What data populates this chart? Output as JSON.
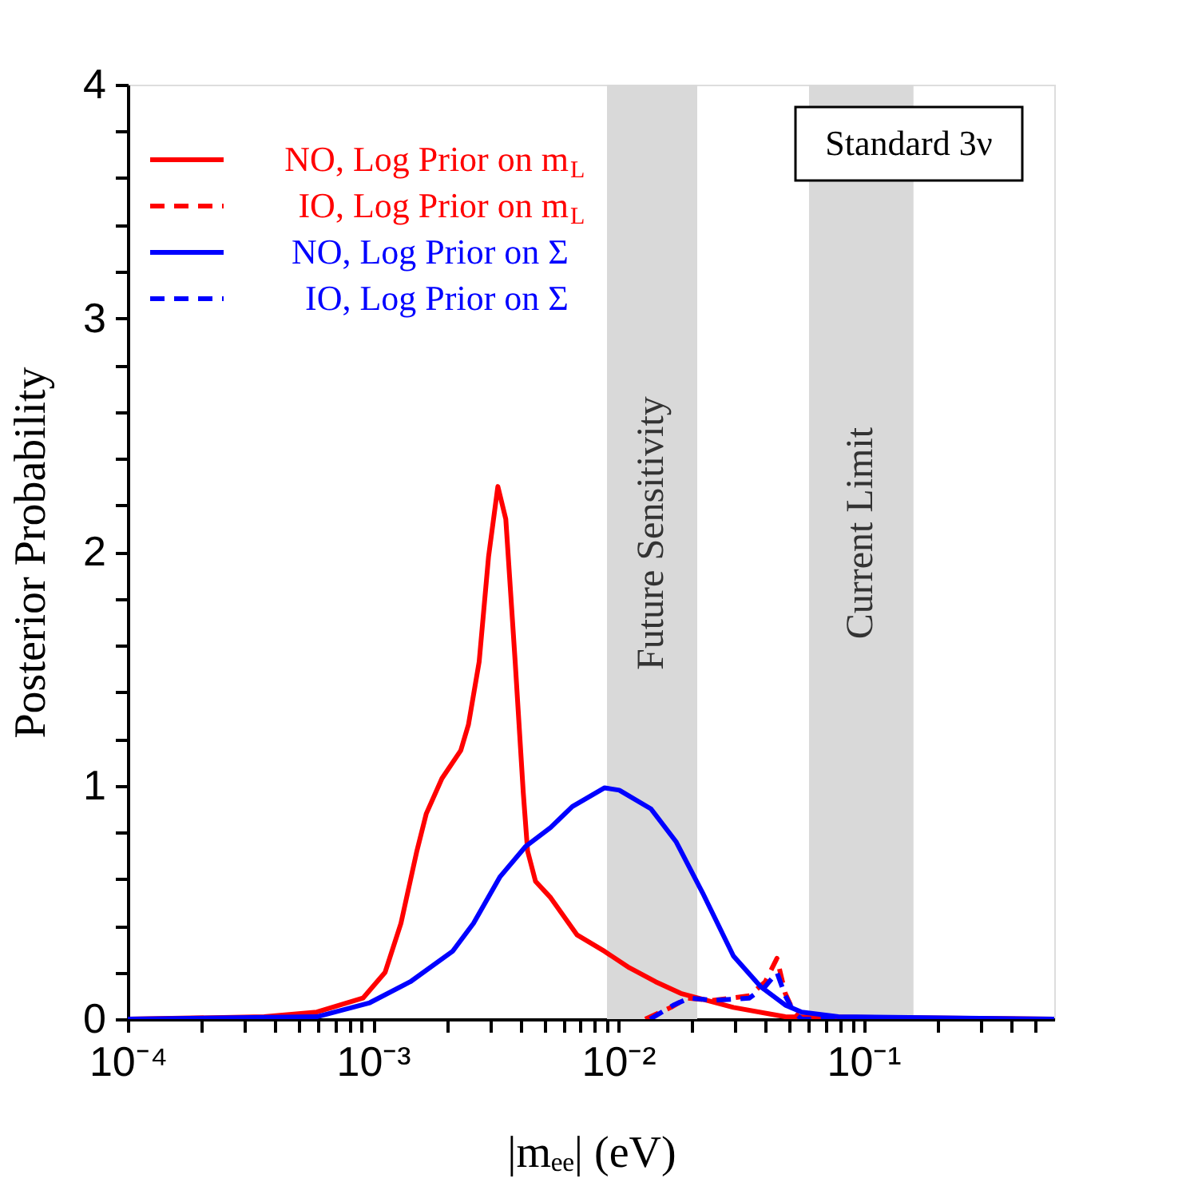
{
  "chart_data": {
    "type": "line",
    "xlabel": "|mₑₑ| (eV)",
    "ylabel": "Posterior Probability",
    "log": "x",
    "grid": false,
    "legend": "top left",
    "marker": "none",
    "xlim": [
      0.0001,
      0.6
    ],
    "ylim": [
      0,
      4
    ],
    "xticks": [
      {
        "value": 0.0001,
        "label": "10⁻⁴"
      },
      {
        "value": 0.0002,
        "label": null
      },
      {
        "value": 0.0003,
        "label": null
      },
      {
        "value": 0.0004,
        "label": null
      },
      {
        "value": 0.0005,
        "label": null
      },
      {
        "value": 0.0006,
        "label": null
      },
      {
        "value": 0.0007,
        "label": null
      },
      {
        "value": 0.0008,
        "label": null
      },
      {
        "value": 0.0009,
        "label": null
      },
      {
        "value": 0.001,
        "label": "10⁻³"
      },
      {
        "value": 0.002,
        "label": null
      },
      {
        "value": 0.003,
        "label": null
      },
      {
        "value": 0.004,
        "label": null
      },
      {
        "value": 0.005,
        "label": null
      },
      {
        "value": 0.006,
        "label": null
      },
      {
        "value": 0.007,
        "label": null
      },
      {
        "value": 0.008,
        "label": null
      },
      {
        "value": 0.009,
        "label": null
      },
      {
        "value": 0.01,
        "label": "10⁻²"
      },
      {
        "value": 0.02,
        "label": null
      },
      {
        "value": 0.03,
        "label": null
      },
      {
        "value": 0.04,
        "label": null
      },
      {
        "value": 0.05,
        "label": null
      },
      {
        "value": 0.06,
        "label": null
      },
      {
        "value": 0.07,
        "label": null
      },
      {
        "value": 0.08,
        "label": null
      },
      {
        "value": 0.09,
        "label": null
      },
      {
        "value": 0.1,
        "label": "10⁻¹"
      },
      {
        "value": 0.2,
        "label": null
      },
      {
        "value": 0.3,
        "label": null
      },
      {
        "value": 0.4,
        "label": null
      },
      {
        "value": 0.5,
        "label": null
      }
    ],
    "yticks": [
      0,
      {
        "value": 0.2,
        "label": null
      },
      {
        "value": 0.4,
        "label": null
      },
      {
        "value": 0.6,
        "label": null
      },
      {
        "value": 0.8,
        "label": null
      },
      1,
      {
        "value": 1.2,
        "label": null
      },
      {
        "value": 1.4,
        "label": null
      },
      {
        "value": 1.6,
        "label": null
      },
      {
        "value": 1.8,
        "label": null
      },
      2,
      {
        "value": 2.2,
        "label": null
      },
      {
        "value": 2.4,
        "label": null
      },
      {
        "value": 2.6,
        "label": null
      },
      {
        "value": 2.8,
        "label": null
      },
      3,
      {
        "value": 3.2,
        "label": null
      },
      {
        "value": 3.4,
        "label": null
      },
      {
        "value": 3.6,
        "label": null
      },
      {
        "value": 3.8,
        "label": null
      },
      4
    ],
    "bands": [
      {
        "axis": "x",
        "from": 0.009,
        "to": 0.021,
        "label": "Future Sensitivity",
        "color": "#d9d9d9"
      },
      {
        "axis": "x",
        "from": 0.06,
        "to": 0.16,
        "label": "Current Limit",
        "color": "#d9d9d9"
      }
    ],
    "annotations": [
      "Standard 3ν"
    ],
    "series": [
      {
        "name": "NO, Log Prior on m$_{L}$",
        "color": "#ff0000",
        "line_style": "solid",
        "x": [
          0.0001,
          0.00036,
          0.00059,
          0.00091,
          0.00112,
          0.0013,
          0.00151,
          0.00165,
          0.00191,
          0.00228,
          0.00245,
          0.00271,
          0.00296,
          0.00323,
          0.00348,
          0.0038,
          0.0041,
          0.00427,
          0.0046,
          0.0053,
          0.0068,
          0.0088,
          0.0111,
          0.0142,
          0.018,
          0.0295,
          0.048,
          0.6
        ],
        "values": [
          0.0,
          0.01,
          0.03,
          0.09,
          0.2,
          0.41,
          0.72,
          0.88,
          1.03,
          1.15,
          1.26,
          1.53,
          1.98,
          2.28,
          2.14,
          1.53,
          0.97,
          0.72,
          0.59,
          0.52,
          0.36,
          0.29,
          0.22,
          0.16,
          0.11,
          0.05,
          0.01,
          0.0
        ]
      },
      {
        "name": "IO, Log Prior on m$_{L}$",
        "color": "#ff0000",
        "line_style": "dashed",
        "x": [
          0.0129,
          0.0164,
          0.019,
          0.0244,
          0.0343,
          0.0398,
          0.0444,
          0.048,
          0.052,
          0.056,
          0.6
        ],
        "values": [
          0.0,
          0.05,
          0.09,
          0.08,
          0.1,
          0.16,
          0.26,
          0.11,
          0.03,
          0.0,
          0.0
        ]
      },
      {
        "name": "NO, Log Prior on Σ",
        "color": "#0000ff",
        "line_style": "solid",
        "x": [
          0.0001,
          0.00059,
          0.00097,
          0.00142,
          0.00211,
          0.00257,
          0.0033,
          0.0042,
          0.0053,
          0.0065,
          0.0088,
          0.0101,
          0.0136,
          0.0172,
          0.0221,
          0.0295,
          0.038,
          0.048,
          0.056,
          0.079,
          0.6
        ],
        "values": [
          0.0,
          0.01,
          0.07,
          0.16,
          0.29,
          0.41,
          0.61,
          0.74,
          0.82,
          0.91,
          0.99,
          0.98,
          0.9,
          0.76,
          0.54,
          0.27,
          0.14,
          0.06,
          0.03,
          0.01,
          0.0
        ]
      },
      {
        "name": "IO, Log Prior on Σ",
        "color": "#0000ff",
        "line_style": "dashed",
        "x": [
          0.0135,
          0.0168,
          0.0195,
          0.0244,
          0.0343,
          0.0398,
          0.0444,
          0.048,
          0.052,
          0.056,
          0.6
        ],
        "values": [
          0.0,
          0.06,
          0.09,
          0.08,
          0.09,
          0.14,
          0.2,
          0.1,
          0.03,
          0.0,
          0.0
        ]
      }
    ]
  }
}
